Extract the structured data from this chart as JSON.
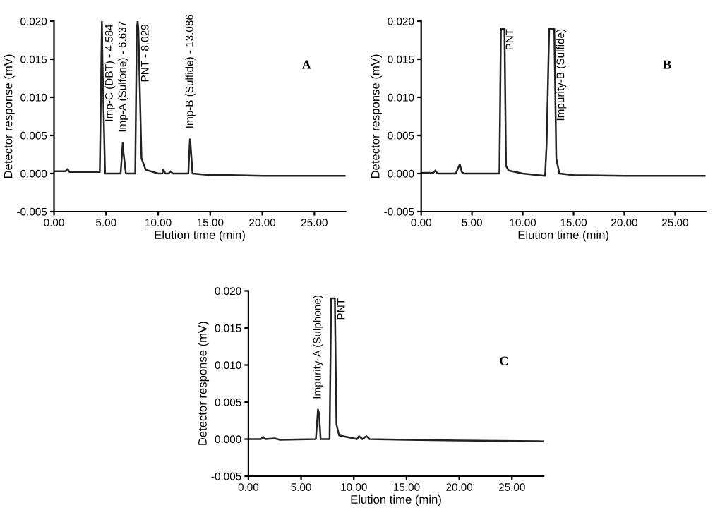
{
  "chart_data": [
    {
      "type": "line",
      "xlabel": "Elution time (min)",
      "ylabel": "Detector response (mV)",
      "xlim": [
        0,
        28
      ],
      "ylim": [
        -0.005,
        0.02
      ],
      "xticks": [
        {
          "value": 0,
          "label": "0.00"
        },
        {
          "value": 5,
          "label": "5.00"
        },
        {
          "value": 10,
          "label": "10.00"
        },
        {
          "value": 15,
          "label": "15.00"
        },
        {
          "value": 20,
          "label": "20.00"
        },
        {
          "value": 25,
          "label": "25.00"
        }
      ],
      "yticks": [
        {
          "value": -0.005,
          "label": "-0.005"
        },
        {
          "value": 0,
          "label": "0.000"
        },
        {
          "value": 0.005,
          "label": "0.005"
        },
        {
          "value": 0.01,
          "label": "0.010"
        },
        {
          "value": 0.015,
          "label": "0.015"
        },
        {
          "value": 0.02,
          "label": "0.020"
        }
      ],
      "grid": false,
      "legend": false,
      "series": [
        {
          "color": "#222222",
          "x": [
            0,
            1.1,
            1.3,
            1.5,
            3,
            4.4,
            4.55,
            4.6,
            4.65,
            4.9,
            6.4,
            6.6,
            6.65,
            6.9,
            7.8,
            7.95,
            8.03,
            8.1,
            8.4,
            8.8,
            10,
            10.4,
            10.5,
            10.7,
            11,
            11.2,
            11.4,
            12.9,
            13.05,
            13.1,
            13.3,
            15,
            17,
            20,
            28
          ],
          "values": [
            0.0003,
            0.0003,
            0.0006,
            0.0002,
            0.0002,
            0.0002,
            0.015,
            0.02,
            0.015,
            0.0,
            0.0,
            0.004,
            0.003,
            0.0,
            0.0,
            0.019,
            0.02,
            0.019,
            0.002,
            0.0005,
            0.0,
            0.0,
            0.0005,
            0.0,
            0.0,
            0.0003,
            0.0,
            0.0,
            0.0045,
            0.004,
            0.0,
            -0.0002,
            -0.0002,
            -0.0003,
            -0.0003
          ]
        }
      ],
      "annotations": [
        {
          "text": "Imp-C (DBT) - 4.584",
          "x": 4.584,
          "y": 0.02
        },
        {
          "text": "Imp-A (Sulfone) - 6.637",
          "x": 6.637,
          "y": 0.004
        },
        {
          "text": "PNT - 8.029",
          "x": 8.029,
          "y": 0.02
        },
        {
          "text": "Imp-B (Sulfide) - 13.086",
          "x": 13.086,
          "y": 0.0045
        },
        "A"
      ]
    },
    {
      "type": "line",
      "xlabel": "Elution time (min)",
      "ylabel": "Detector response (mV)",
      "xlim": [
        0,
        28
      ],
      "ylim": [
        -0.005,
        0.02
      ],
      "xticks": [
        {
          "value": 0,
          "label": "0.00"
        },
        {
          "value": 5,
          "label": "5.00"
        },
        {
          "value": 10,
          "label": "10.00"
        },
        {
          "value": 15,
          "label": "15.00"
        },
        {
          "value": 20,
          "label": "20.00"
        },
        {
          "value": 25,
          "label": "25.00"
        }
      ],
      "yticks": [
        {
          "value": -0.005,
          "label": "-0.005"
        },
        {
          "value": 0,
          "label": "0.000"
        },
        {
          "value": 0.005,
          "label": "0.005"
        },
        {
          "value": 0.01,
          "label": "0.010"
        },
        {
          "value": 0.015,
          "label": "0.015"
        },
        {
          "value": 0.02,
          "label": "0.020"
        }
      ],
      "grid": false,
      "legend": false,
      "series": [
        {
          "color": "#222222",
          "x": [
            0,
            1.2,
            1.4,
            1.6,
            3.4,
            3.6,
            3.8,
            4.0,
            4.2,
            7.7,
            7.85,
            8.0,
            8.2,
            8.35,
            8.6,
            10,
            12.2,
            12.35,
            12.6,
            13.1,
            13.3,
            13.6,
            15,
            20,
            28
          ],
          "values": [
            0.0001,
            0.0001,
            0.0004,
            0.0,
            0.0,
            0.0006,
            0.0012,
            0.0002,
            0.0,
            0.0,
            0.019,
            0.019,
            0.019,
            0.001,
            0.0004,
            0.0,
            -0.0003,
            0.004,
            0.019,
            0.019,
            0.002,
            0.0,
            -0.0002,
            -0.0003,
            -0.0003
          ]
        }
      ],
      "annotations": [
        {
          "text": "PNT",
          "x": 8.0,
          "y": 0.019
        },
        {
          "text": "Impurity-B (Sulfide)",
          "x": 13.0,
          "y": 0.019
        },
        "B"
      ]
    },
    {
      "type": "line",
      "xlabel": "Elution time (min)",
      "ylabel": "Detector response (mV)",
      "xlim": [
        0,
        28
      ],
      "ylim": [
        -0.005,
        0.02
      ],
      "xticks": [
        {
          "value": 0,
          "label": "0.00"
        },
        {
          "value": 5,
          "label": "5.00"
        },
        {
          "value": 10,
          "label": "10.00"
        },
        {
          "value": 15,
          "label": "15.00"
        },
        {
          "value": 20,
          "label": "20.00"
        },
        {
          "value": 25,
          "label": "25.00"
        }
      ],
      "yticks": [
        {
          "value": -0.005,
          "label": "-0.005"
        },
        {
          "value": 0,
          "label": "0.000"
        },
        {
          "value": 0.005,
          "label": "0.005"
        },
        {
          "value": 0.01,
          "label": "0.010"
        },
        {
          "value": 0.015,
          "label": "0.015"
        },
        {
          "value": 0.02,
          "label": "0.020"
        }
      ],
      "grid": false,
      "legend": false,
      "series": [
        {
          "color": "#222222",
          "x": [
            0,
            1.2,
            1.4,
            1.6,
            2.5,
            3,
            6.4,
            6.6,
            6.7,
            6.85,
            7.7,
            7.85,
            8.0,
            8.2,
            8.35,
            8.6,
            10.3,
            10.5,
            10.8,
            11.2,
            11.5,
            15,
            20,
            28
          ],
          "values": [
            0.0,
            0.0,
            0.0003,
            0.0,
            0.0001,
            -0.0001,
            0.0,
            0.004,
            0.0035,
            0.0,
            0.0,
            0.019,
            0.019,
            0.019,
            0.002,
            0.0005,
            0.0,
            0.0004,
            0.0,
            0.0004,
            0.0,
            -0.0001,
            -0.0002,
            -0.0003
          ]
        }
      ],
      "annotations": [
        {
          "text": "Impurity-A (Sulphone)",
          "x": 6.6,
          "y": 0.004
        },
        {
          "text": "PNT",
          "x": 8.1,
          "y": 0.019
        },
        "C"
      ]
    }
  ]
}
